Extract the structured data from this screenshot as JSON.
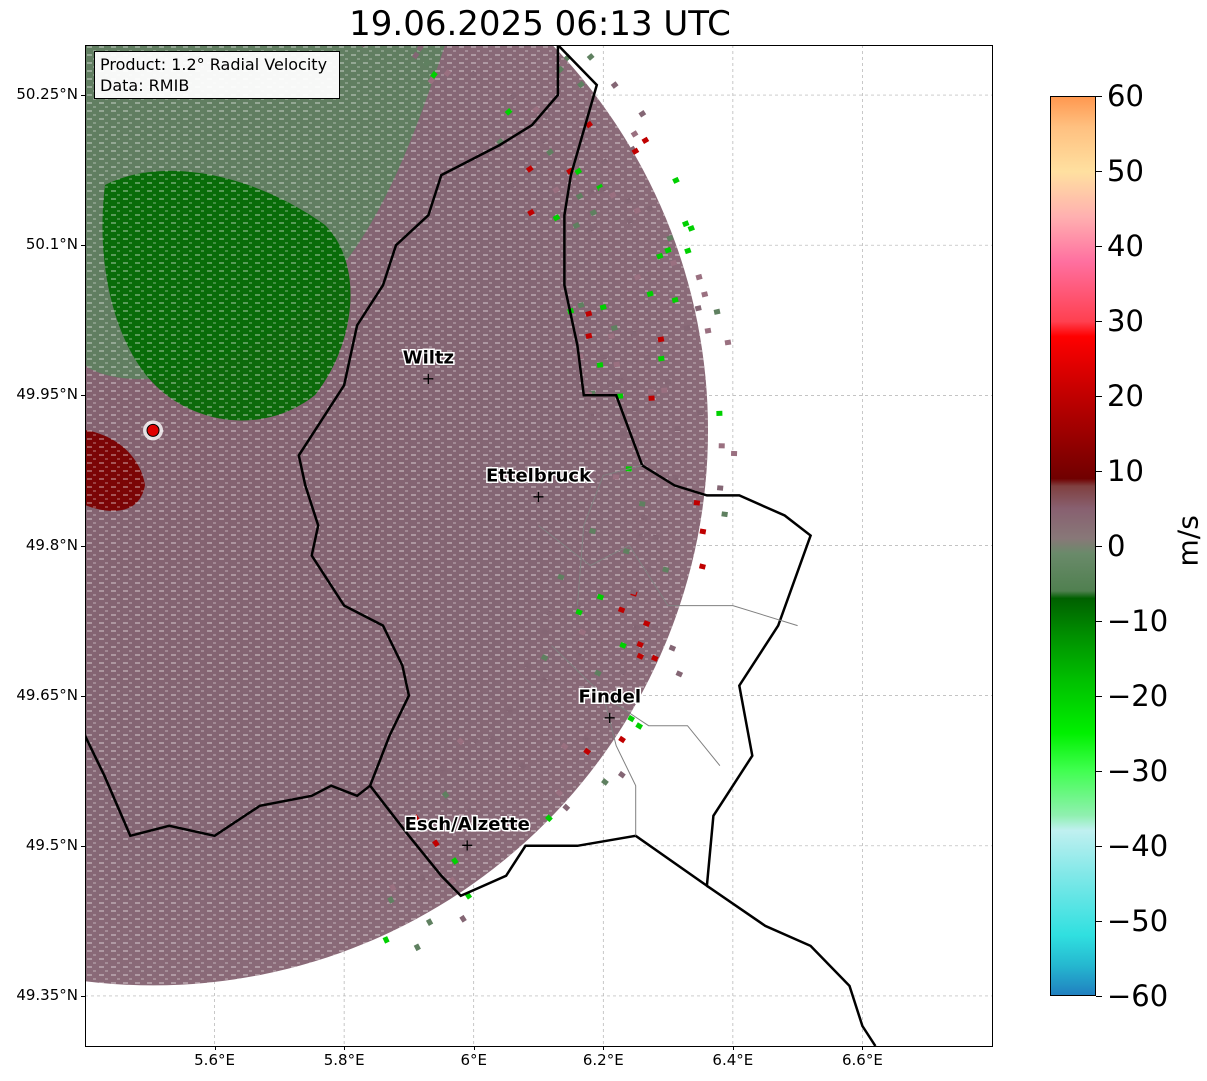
{
  "title": "19.06.2025 06:13 UTC",
  "info": {
    "product": "Product: 1.2° Radial Velocity",
    "data": "Data: RMIB"
  },
  "axes": {
    "lat_ticks": [
      {
        "label": "50.25°N",
        "value": 50.25
      },
      {
        "label": "50.1°N",
        "value": 50.1
      },
      {
        "label": "49.95°N",
        "value": 49.95
      },
      {
        "label": "49.8°N",
        "value": 49.8
      },
      {
        "label": "49.65°N",
        "value": 49.65
      },
      {
        "label": "49.5°N",
        "value": 49.5
      },
      {
        "label": "49.35°N",
        "value": 49.35
      }
    ],
    "lon_ticks": [
      {
        "label": "5.6°E",
        "value": 5.6
      },
      {
        "label": "5.8°E",
        "value": 5.8
      },
      {
        "label": "6°E",
        "value": 6.0
      },
      {
        "label": "6.2°E",
        "value": 6.2
      },
      {
        "label": "6.4°E",
        "value": 6.4
      },
      {
        "label": "6.6°E",
        "value": 6.6
      }
    ],
    "lon_range": [
      5.4,
      6.8
    ],
    "lat_range": [
      49.3,
      50.3
    ],
    "grid": true
  },
  "cities": [
    {
      "name": "Wiltz",
      "lon": 5.93,
      "lat": 49.966
    },
    {
      "name": "Ettelbruck",
      "lon": 6.1,
      "lat": 49.848
    },
    {
      "name": "Findel",
      "lon": 6.21,
      "lat": 49.627
    },
    {
      "name": "Esch/Alzette",
      "lon": 5.99,
      "lat": 49.5
    }
  ],
  "radar_site": {
    "lon": 5.505,
    "lat": 49.915
  },
  "colorbar": {
    "label": "m/s",
    "min": -60,
    "max": 60,
    "ticks": [
      {
        "label": "60",
        "value": 60
      },
      {
        "label": "50",
        "value": 50
      },
      {
        "label": "40",
        "value": 40
      },
      {
        "label": "30",
        "value": 30
      },
      {
        "label": "20",
        "value": 20
      },
      {
        "label": "10",
        "value": 10
      },
      {
        "label": "0",
        "value": 0
      },
      {
        "label": "−10",
        "value": -10
      },
      {
        "label": "−20",
        "value": -20
      },
      {
        "label": "−30",
        "value": -30
      },
      {
        "label": "−40",
        "value": -40
      },
      {
        "label": "−50",
        "value": -50
      },
      {
        "label": "−60",
        "value": -60
      }
    ],
    "stops": [
      {
        "v": -60,
        "c": "#2080c0"
      },
      {
        "v": -56,
        "c": "#25b8d0"
      },
      {
        "v": -52,
        "c": "#30e0e0"
      },
      {
        "v": -44,
        "c": "#80e8e8"
      },
      {
        "v": -38,
        "c": "#c0f0f0"
      },
      {
        "v": -36,
        "c": "#90f0b0"
      },
      {
        "v": -30,
        "c": "#40ff50"
      },
      {
        "v": -25,
        "c": "#00f000"
      },
      {
        "v": -18,
        "c": "#00c000"
      },
      {
        "v": -12,
        "c": "#009000"
      },
      {
        "v": -7,
        "c": "#006000"
      },
      {
        "v": -6,
        "c": "#508050"
      },
      {
        "v": -1,
        "c": "#6a8a6a"
      },
      {
        "v": 1,
        "c": "#887878"
      },
      {
        "v": 5,
        "c": "#886070"
      },
      {
        "v": 8,
        "c": "#804040"
      },
      {
        "v": 9,
        "c": "#700000"
      },
      {
        "v": 20,
        "c": "#c00000"
      },
      {
        "v": 28,
        "c": "#ff0000"
      },
      {
        "v": 30,
        "c": "#ff4050"
      },
      {
        "v": 38,
        "c": "#ff70a0"
      },
      {
        "v": 44,
        "c": "#ffb0b0"
      },
      {
        "v": 50,
        "c": "#ffe0a0"
      },
      {
        "v": 56,
        "c": "#ffc080"
      },
      {
        "v": 60,
        "c": "#ff9850"
      }
    ]
  },
  "colors": {
    "outbound_pink": "#846674",
    "inbound_green": "#5f8060",
    "strong_inbound": "#006a00",
    "strong_outbound": "#7a0000",
    "border": "#000000",
    "canton_border": "#808080",
    "radar_marker": "#e00000"
  }
}
